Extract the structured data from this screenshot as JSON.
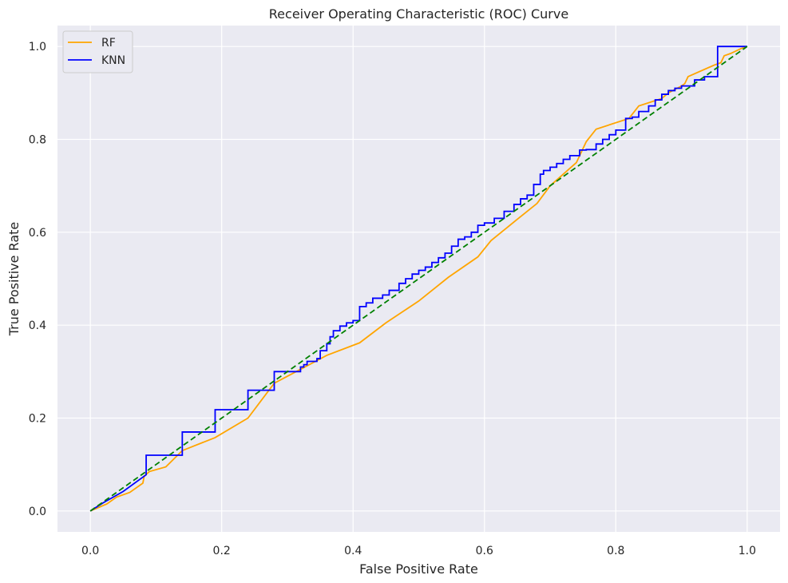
{
  "chart_data": {
    "type": "line",
    "title": "Receiver Operating Characteristic (ROC) Curve",
    "xlabel": "False Positive Rate",
    "ylabel": "True Positive Rate",
    "xlim": [
      -0.05,
      1.05
    ],
    "ylim": [
      -0.045,
      1.045
    ],
    "xticks": [
      "0.0",
      "0.2",
      "0.4",
      "0.6",
      "0.8",
      "1.0"
    ],
    "yticks": [
      "0.0",
      "0.2",
      "0.4",
      "0.6",
      "0.8",
      "1.0"
    ],
    "grid": true,
    "legend_position": "top-left",
    "background_color": "#eaeaf2",
    "grid_color": "#ffffff",
    "series": [
      {
        "name": "RF",
        "color": "#ffa500",
        "style": "solid",
        "x": [
          0.0,
          0.02,
          0.025,
          0.04,
          0.06,
          0.08,
          0.082,
          0.09,
          0.115,
          0.14,
          0.19,
          0.24,
          0.28,
          0.32,
          0.36,
          0.41,
          0.45,
          0.5,
          0.545,
          0.59,
          0.61,
          0.65,
          0.68,
          0.7,
          0.74,
          0.755,
          0.77,
          0.82,
          0.835,
          0.87,
          0.88,
          0.9,
          0.905,
          0.91,
          0.95,
          0.96,
          0.965,
          0.975,
          0.99,
          1.0
        ],
        "y": [
          0.0,
          0.012,
          0.015,
          0.03,
          0.04,
          0.06,
          0.075,
          0.085,
          0.095,
          0.13,
          0.158,
          0.2,
          0.275,
          0.305,
          0.335,
          0.362,
          0.405,
          0.452,
          0.503,
          0.547,
          0.582,
          0.628,
          0.662,
          0.7,
          0.75,
          0.795,
          0.822,
          0.845,
          0.872,
          0.888,
          0.9,
          0.915,
          0.92,
          0.935,
          0.96,
          0.965,
          0.98,
          0.985,
          0.995,
          1.0
        ]
      },
      {
        "name": "KNN",
        "color": "#0000ff",
        "style": "solid",
        "x": [
          0.0,
          0.02,
          0.05,
          0.085,
          0.14,
          0.19,
          0.24,
          0.28,
          0.32,
          0.325,
          0.33,
          0.345,
          0.35,
          0.36,
          0.365,
          0.37,
          0.38,
          0.39,
          0.4,
          0.41,
          0.42,
          0.43,
          0.445,
          0.455,
          0.47,
          0.48,
          0.49,
          0.5,
          0.51,
          0.52,
          0.53,
          0.54,
          0.55,
          0.56,
          0.57,
          0.58,
          0.59,
          0.6,
          0.615,
          0.63,
          0.645,
          0.655,
          0.665,
          0.675,
          0.685,
          0.69,
          0.7,
          0.71,
          0.72,
          0.73,
          0.745,
          0.755,
          0.77,
          0.78,
          0.79,
          0.8,
          0.815,
          0.825,
          0.835,
          0.85,
          0.86,
          0.87,
          0.88,
          0.89,
          0.9,
          0.92,
          0.935,
          0.955,
          1.0
        ],
        "y": [
          0.0,
          0.018,
          0.042,
          0.078,
          0.12,
          0.17,
          0.218,
          0.26,
          0.3,
          0.31,
          0.315,
          0.322,
          0.328,
          0.345,
          0.36,
          0.375,
          0.388,
          0.398,
          0.405,
          0.41,
          0.44,
          0.448,
          0.458,
          0.465,
          0.475,
          0.49,
          0.5,
          0.51,
          0.518,
          0.525,
          0.535,
          0.545,
          0.555,
          0.57,
          0.585,
          0.59,
          0.6,
          0.615,
          0.62,
          0.63,
          0.645,
          0.66,
          0.672,
          0.68,
          0.703,
          0.725,
          0.733,
          0.74,
          0.748,
          0.757,
          0.765,
          0.777,
          0.778,
          0.79,
          0.8,
          0.81,
          0.82,
          0.845,
          0.848,
          0.86,
          0.872,
          0.885,
          0.897,
          0.905,
          0.91,
          0.915,
          0.928,
          0.935,
          1.0
        ]
      },
      {
        "color": "#008000",
        "style": "dashed",
        "x": [
          0.0,
          1.0
        ],
        "y": [
          0.0,
          1.0
        ]
      }
    ]
  }
}
